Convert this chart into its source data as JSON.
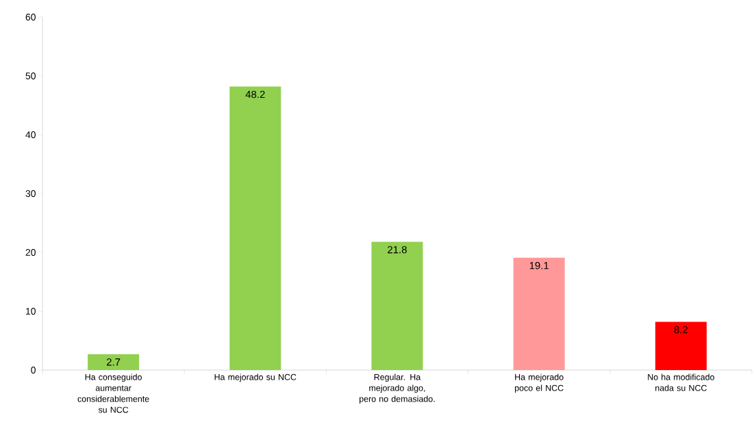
{
  "chart_data": {
    "type": "bar",
    "categories": [
      "Ha conseguido aumentar considerablemente su NCC",
      "Ha mejorado su NCC",
      "Regular. Ha mejorado algo, pero no demasiado.",
      "Ha mejorado poco el NCC",
      "No ha modificado nada su NCC"
    ],
    "values": [
      2.7,
      48.2,
      21.8,
      19.1,
      8.2
    ],
    "colors": [
      "#92d050",
      "#92d050",
      "#92d050",
      "#ff9999",
      "#ff0000"
    ],
    "ylim": [
      0,
      60
    ],
    "yticks": [
      0,
      10,
      20,
      30,
      40,
      50,
      60
    ],
    "data_labels": true
  }
}
